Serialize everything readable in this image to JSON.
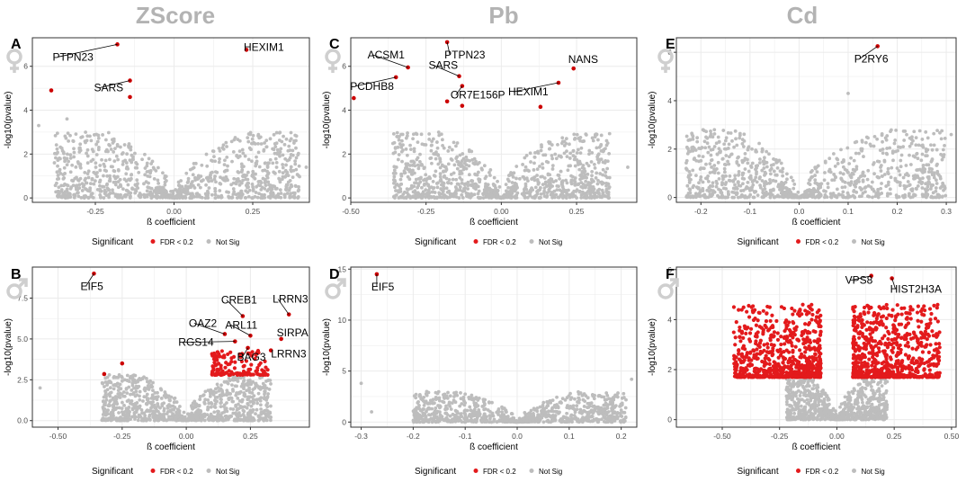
{
  "column_titles": [
    "ZScore",
    "Pb",
    "Cd"
  ],
  "legend": {
    "title": "Significant",
    "sig_label": "FDR < 0.2",
    "nonsig_label": "Not Sig"
  },
  "colors": {
    "sig": "#e31a1c",
    "nonsig": "#bdbdbd",
    "sig_label_dot": "#cc0000",
    "grid": "#ebebeb",
    "panel_border": "#333333",
    "column_title": "#b3b3b3",
    "sex_symbol": "#cfcfcf"
  },
  "icons": {
    "female": "female-symbol-icon",
    "male": "male-symbol-icon"
  },
  "chart_data": [
    {
      "panel": "A",
      "sex": "female",
      "type": "scatter",
      "title": "ZScore",
      "xlabel": "ß coefficient",
      "ylabel": "-log10(pvalue)",
      "xlim": [
        -0.45,
        0.43
      ],
      "ylim": [
        -0.2,
        7.3
      ],
      "xticks": [
        -0.25,
        0.0,
        0.25
      ],
      "xtick_labels": [
        "-0.25",
        "0.00",
        "0.25"
      ],
      "yticks": [
        0,
        2,
        4,
        6
      ],
      "ytick_labels": [
        "0",
        "2",
        "4",
        "6"
      ],
      "cloud": {
        "shape": "v",
        "neg_xmax": 0.38,
        "pos_xmax": 0.4,
        "ymax": 3.0,
        "n": 900
      },
      "nonsig_outliers": [
        {
          "x": -0.43,
          "y": 3.3
        },
        {
          "x": -0.34,
          "y": 3.6
        },
        {
          "x": 0.42,
          "y": 1.4
        },
        {
          "x": 0.36,
          "y": 1.7
        },
        {
          "x": -0.38,
          "y": 1.6
        }
      ],
      "significant": [
        {
          "label": "PTPN23",
          "x": -0.18,
          "y": 7.0
        },
        {
          "label": "HEXIM1",
          "x": 0.23,
          "y": 6.75
        },
        {
          "label": "SARS",
          "x": -0.14,
          "y": 5.35
        },
        {
          "label": "",
          "x": -0.14,
          "y": 4.6
        },
        {
          "label": "",
          "x": -0.39,
          "y": 4.9
        }
      ]
    },
    {
      "panel": "B",
      "sex": "male",
      "type": "scatter",
      "title": "ZScore",
      "xlabel": "ß coefficient",
      "ylabel": "-log10(pvalue)",
      "xlim": [
        -0.6,
        0.48
      ],
      "ylim": [
        -0.4,
        9.4
      ],
      "xticks": [
        -0.5,
        -0.25,
        0.0,
        0.25
      ],
      "xtick_labels": [
        "-0.50",
        "-0.25",
        "0.00",
        "0.25"
      ],
      "yticks": [
        0,
        2.5,
        5,
        7.5
      ],
      "ytick_labels": [
        "0.0",
        "2.5",
        "5.0",
        "7.5"
      ],
      "cloud": {
        "shape": "v",
        "neg_xmax": 0.33,
        "pos_xmax": 0.33,
        "ymax": 2.8,
        "n": 900
      },
      "sig_band": {
        "xmin": 0.1,
        "xmax": 0.32,
        "ymin": 2.8,
        "ymax": 4.3,
        "n": 140
      },
      "nonsig_outliers": [
        {
          "x": -0.57,
          "y": 2.0
        },
        {
          "x": -0.3,
          "y": 2.8
        }
      ],
      "significant": [
        {
          "label": "EIF5",
          "x": -0.36,
          "y": 9.0
        },
        {
          "label": "CREB1",
          "x": 0.22,
          "y": 6.4
        },
        {
          "label": "LRRN3",
          "x": 0.4,
          "y": 6.5
        },
        {
          "label": "OAZ2",
          "x": 0.15,
          "y": 5.3
        },
        {
          "label": "ARL11",
          "x": 0.25,
          "y": 5.2
        },
        {
          "label": "SIRPA",
          "x": 0.37,
          "y": 5.0
        },
        {
          "label": "RGS14",
          "x": 0.19,
          "y": 4.85
        },
        {
          "label": "BAG3",
          "x": 0.24,
          "y": 4.45
        },
        {
          "label": "LRRN3",
          "x": 0.33,
          "y": 4.3
        },
        {
          "label": "",
          "x": -0.25,
          "y": 3.5
        },
        {
          "label": "",
          "x": -0.32,
          "y": 2.85
        }
      ]
    },
    {
      "panel": "C",
      "sex": "female",
      "type": "scatter",
      "title": "Pb",
      "xlabel": "ß coefficient",
      "ylabel": "-log10(pvalue)",
      "xlim": [
        -0.5,
        0.45
      ],
      "ylim": [
        -0.2,
        7.3
      ],
      "xticks": [
        -0.5,
        -0.25,
        0.0,
        0.25
      ],
      "xtick_labels": [
        "-0.50",
        "-0.25",
        "0.00",
        "0.25"
      ],
      "yticks": [
        0,
        2,
        4,
        6
      ],
      "ytick_labels": [
        "0",
        "2",
        "4",
        "6"
      ],
      "cloud": {
        "shape": "v",
        "neg_xmax": 0.36,
        "pos_xmax": 0.36,
        "ymax": 3.0,
        "n": 900
      },
      "nonsig_outliers": [
        {
          "x": 0.42,
          "y": 1.4
        },
        {
          "x": -0.33,
          "y": 2.6
        },
        {
          "x": 0.35,
          "y": 2.4
        }
      ],
      "significant": [
        {
          "label": "PTPN23",
          "x": -0.18,
          "y": 7.1
        },
        {
          "label": "ACSM1",
          "x": -0.31,
          "y": 5.95
        },
        {
          "label": "NANS",
          "x": 0.24,
          "y": 5.9
        },
        {
          "label": "SARS",
          "x": -0.14,
          "y": 5.55
        },
        {
          "label": "PCDHB8",
          "x": -0.35,
          "y": 5.5
        },
        {
          "label": "HEXIM1",
          "x": 0.19,
          "y": 5.25
        },
        {
          "label": "OR7E156P",
          "x": -0.13,
          "y": 5.1
        },
        {
          "label": "",
          "x": -0.49,
          "y": 4.55
        },
        {
          "label": "",
          "x": 0.13,
          "y": 4.15
        },
        {
          "label": "",
          "x": -0.13,
          "y": 4.2
        },
        {
          "label": "",
          "x": -0.18,
          "y": 4.4
        }
      ]
    },
    {
      "panel": "D",
      "sex": "male",
      "type": "scatter",
      "title": "Pb",
      "xlabel": "ß coefficient",
      "ylabel": "-log10(pvalue)",
      "xlim": [
        -0.32,
        0.23
      ],
      "ylim": [
        -0.5,
        15.2
      ],
      "xticks": [
        -0.3,
        -0.2,
        -0.1,
        0.0,
        0.1,
        0.2
      ],
      "xtick_labels": [
        "-0.3",
        "-0.2",
        "-0.1",
        "0.0",
        "0.1",
        "0.2"
      ],
      "yticks": [
        0,
        5,
        10,
        15
      ],
      "ytick_labels": [
        "0",
        "5",
        "10",
        "15"
      ],
      "cloud": {
        "shape": "v",
        "neg_xmax": 0.2,
        "pos_xmax": 0.21,
        "ymax": 3.0,
        "n": 800
      },
      "nonsig_outliers": [
        {
          "x": -0.3,
          "y": 3.8
        },
        {
          "x": 0.22,
          "y": 4.2
        },
        {
          "x": -0.28,
          "y": 1.0
        }
      ],
      "significant": [
        {
          "label": "EIF5",
          "x": -0.27,
          "y": 14.5
        }
      ]
    },
    {
      "panel": "E",
      "sex": "female",
      "type": "scatter",
      "title": "Cd",
      "xlabel": "ß coefficient",
      "ylabel": "-log10(pvalue)",
      "xlim": [
        -0.25,
        0.32
      ],
      "ylim": [
        -0.2,
        6.6
      ],
      "xticks": [
        -0.2,
        -0.1,
        0.0,
        0.1,
        0.2,
        0.3
      ],
      "xtick_labels": [
        "-0.2",
        "-0.1",
        "0.0",
        "0.1",
        "0.2",
        "0.3"
      ],
      "yticks": [
        0,
        2,
        4,
        6
      ],
      "ytick_labels": [
        "0",
        "2",
        "4",
        "6"
      ],
      "cloud": {
        "shape": "v",
        "neg_xmax": 0.23,
        "pos_xmax": 0.3,
        "ymax": 2.8,
        "n": 900
      },
      "nonsig_outliers": [
        {
          "x": 0.1,
          "y": 4.3
        },
        {
          "x": 0.31,
          "y": 2.6
        },
        {
          "x": -0.23,
          "y": 1.2
        }
      ],
      "significant": [
        {
          "label": "P2RY6",
          "x": 0.16,
          "y": 6.25
        }
      ]
    },
    {
      "panel": "F",
      "sex": "male",
      "type": "scatter",
      "title": "Cd",
      "xlabel": "ß coefficient",
      "ylabel": "-log10(pvalue)",
      "xlim": [
        -0.7,
        0.52
      ],
      "ylim": [
        -0.3,
        6.1
      ],
      "xticks": [
        -0.5,
        -0.25,
        0.0,
        0.25,
        0.5
      ],
      "xtick_labels": [
        "-0.50",
        "-0.25",
        "0.00",
        "0.25",
        "0.50"
      ],
      "yticks": [
        0,
        2,
        4,
        6
      ],
      "ytick_labels": [
        "0",
        "2",
        "4",
        "6"
      ],
      "cloud": {
        "shape": "v",
        "neg_xmax": 0.22,
        "pos_xmax": 0.22,
        "ymax": 1.7,
        "n": 700
      },
      "sig_band": {
        "xmin": 0.07,
        "xmax": 0.45,
        "ymin": 1.7,
        "ymax": 4.6,
        "n": 700,
        "mirror": true
      },
      "nonsig_outliers": [],
      "significant": [
        {
          "label": "VPS8",
          "x": 0.15,
          "y": 5.75
        },
        {
          "label": "HIST2H3A",
          "x": 0.24,
          "y": 5.65
        }
      ]
    }
  ]
}
